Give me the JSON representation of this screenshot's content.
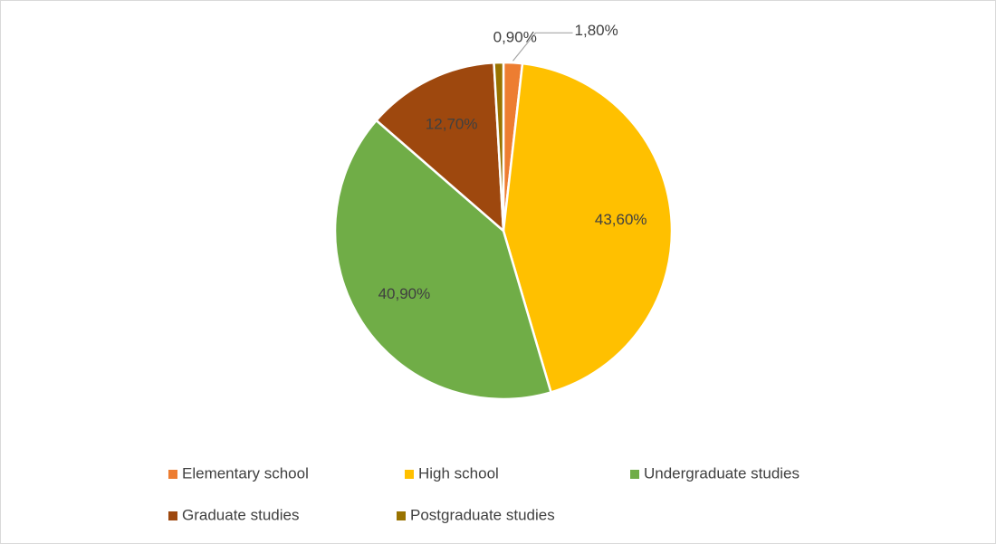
{
  "chart_data": {
    "type": "pie",
    "categories": [
      "Elementary school",
      "High school",
      "Undergraduate studies",
      "Graduate studies",
      "Postgraduate studies"
    ],
    "values": [
      1.8,
      43.6,
      40.9,
      12.7,
      0.9
    ],
    "value_labels": [
      "1,80%",
      "43,60%",
      "40,90%",
      "12,70%",
      "0,90%"
    ],
    "colors": [
      "#ED7D31",
      "#FFC000",
      "#70AD47",
      "#9E480E",
      "#997300"
    ],
    "legend": "bottom"
  }
}
